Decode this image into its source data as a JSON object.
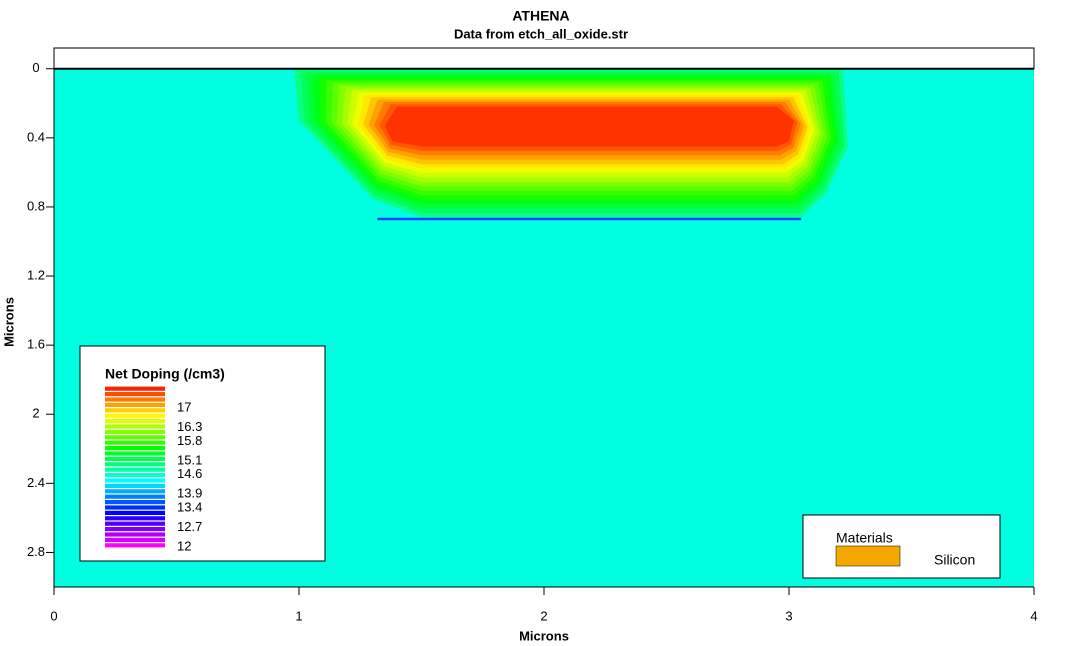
{
  "chart_data": {
    "type": "contour",
    "title": "ATHENA",
    "subtitle": "Data from etch_all_oxide.str",
    "x_label": "Microns",
    "y_label": "Microns",
    "xlim": [
      0,
      4
    ],
    "ylim": [
      -0.12,
      3.0
    ],
    "xticks": [
      0,
      1,
      2,
      3,
      4
    ],
    "yticks": [
      0,
      0.4,
      0.8,
      1.2,
      1.6,
      2,
      2.4,
      2.8
    ],
    "y_inverted": true,
    "background_color": "#00ffe0",
    "legend": {
      "title": "Net Doping (/cm3)",
      "levels": [
        17,
        16.3,
        15.8,
        15.1,
        14.6,
        13.9,
        13.4,
        12.7,
        12
      ]
    },
    "materials": {
      "title": "Materials",
      "items": [
        {
          "name": "Silicon",
          "color": "#f5a800"
        }
      ]
    }
  }
}
